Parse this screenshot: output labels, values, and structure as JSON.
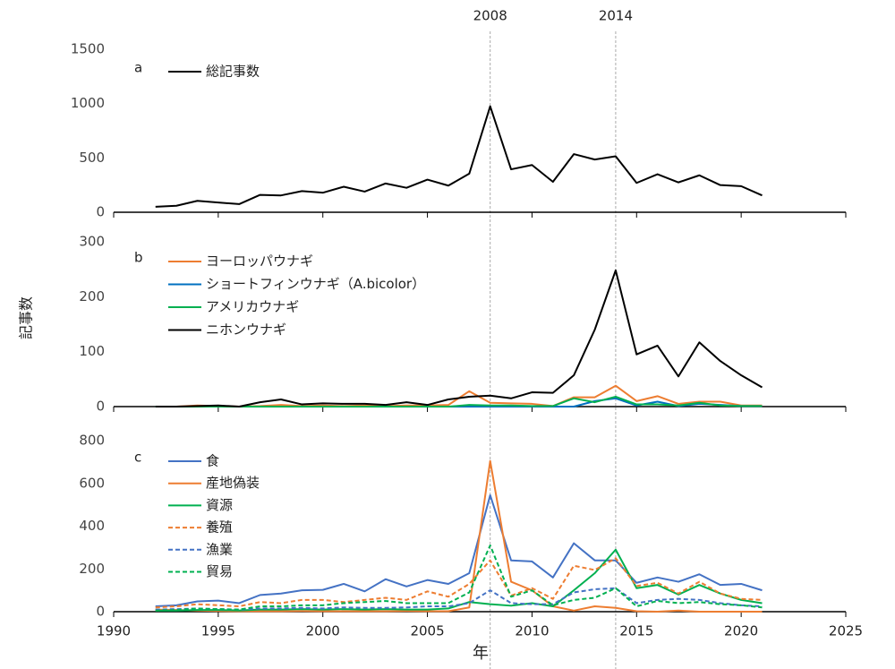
{
  "ylabel": "記事数",
  "xlabel": "年",
  "xlim": [
    1990,
    2025
  ],
  "xticks": [
    1990,
    1995,
    2000,
    2005,
    2010,
    2015,
    2020,
    2025
  ],
  "vlines": [
    2008,
    2014
  ],
  "chart_data": [
    {
      "type": "line",
      "label": "a",
      "ylim": [
        0,
        1500
      ],
      "yticks": [
        0,
        500,
        1000,
        1500
      ],
      "x": [
        1992,
        1993,
        1994,
        1995,
        1996,
        1997,
        1998,
        1999,
        2000,
        2001,
        2002,
        2003,
        2004,
        2005,
        2006,
        2007,
        2008,
        2009,
        2010,
        2011,
        2012,
        2013,
        2014,
        2015,
        2016,
        2017,
        2018,
        2019,
        2020,
        2021
      ],
      "series": [
        {
          "name": "総記事数",
          "color": "#000000",
          "dash": false,
          "values": [
            50,
            60,
            105,
            90,
            75,
            160,
            155,
            195,
            180,
            235,
            190,
            265,
            225,
            300,
            245,
            355,
            975,
            395,
            435,
            280,
            535,
            485,
            515,
            270,
            350,
            275,
            340,
            250,
            240,
            155
          ]
        }
      ]
    },
    {
      "type": "line",
      "label": "b",
      "ylim": [
        0,
        300
      ],
      "yticks": [
        0,
        100,
        200,
        300
      ],
      "x": [
        1992,
        1993,
        1994,
        1995,
        1996,
        1997,
        1998,
        1999,
        2000,
        2001,
        2002,
        2003,
        2004,
        2005,
        2006,
        2007,
        2008,
        2009,
        2010,
        2011,
        2012,
        2013,
        2014,
        2015,
        2016,
        2017,
        2018,
        2019,
        2020,
        2021
      ],
      "series": [
        {
          "name": "ヨーロッパウナギ",
          "color": "#ed7d31",
          "dash": false,
          "values": [
            0,
            0,
            2,
            1,
            0,
            1,
            3,
            1,
            2,
            1,
            2,
            1,
            2,
            2,
            3,
            28,
            7,
            6,
            5,
            1,
            17,
            17,
            38,
            10,
            19,
            5,
            9,
            9,
            2,
            2
          ]
        },
        {
          "name": "ショートフィンウナギ（A.bicolor）",
          "color": "#0070c0",
          "dash": false,
          "values": [
            0,
            0,
            0,
            0,
            0,
            0,
            0,
            0,
            0,
            0,
            0,
            0,
            0,
            0,
            0,
            0,
            0,
            0,
            0,
            0,
            0,
            10,
            15,
            2,
            9,
            1,
            5,
            3,
            1,
            1
          ]
        },
        {
          "name": "アメリカウナギ",
          "color": "#00b050",
          "dash": false,
          "values": [
            0,
            0,
            0,
            0,
            0,
            0,
            0,
            0,
            0,
            0,
            0,
            0,
            0,
            0,
            0,
            3,
            2,
            2,
            1,
            1,
            15,
            8,
            18,
            4,
            4,
            2,
            7,
            2,
            1,
            1
          ]
        },
        {
          "name": "ニホンウナギ",
          "color": "#000000",
          "dash": false,
          "values": [
            0,
            0,
            1,
            2,
            0,
            8,
            13,
            4,
            6,
            5,
            5,
            3,
            8,
            3,
            13,
            18,
            20,
            15,
            26,
            25,
            57,
            140,
            248,
            95,
            111,
            55,
            117,
            83,
            57,
            35
          ]
        }
      ]
    },
    {
      "type": "line",
      "label": "c",
      "ylim": [
        0,
        800
      ],
      "yticks": [
        0,
        200,
        400,
        600,
        800
      ],
      "x": [
        1992,
        1993,
        1994,
        1995,
        1996,
        1997,
        1998,
        1999,
        2000,
        2001,
        2002,
        2003,
        2004,
        2005,
        2006,
        2007,
        2008,
        2009,
        2010,
        2011,
        2012,
        2013,
        2014,
        2015,
        2016,
        2017,
        2018,
        2019,
        2020,
        2021
      ],
      "series": [
        {
          "name": "食",
          "color": "#4472c4",
          "dash": false,
          "values": [
            25,
            30,
            48,
            52,
            40,
            78,
            85,
            100,
            102,
            130,
            95,
            152,
            118,
            148,
            130,
            180,
            545,
            240,
            235,
            160,
            320,
            240,
            240,
            135,
            160,
            140,
            175,
            125,
            130,
            100
          ]
        },
        {
          "name": "産地偽装",
          "color": "#ed7d31",
          "dash": false,
          "values": [
            10,
            8,
            5,
            3,
            2,
            2,
            2,
            3,
            2,
            2,
            2,
            2,
            3,
            2,
            2,
            20,
            705,
            140,
            100,
            25,
            5,
            25,
            18,
            2,
            0,
            5,
            0,
            0,
            0,
            0
          ]
        },
        {
          "name": "資源",
          "color": "#00b050",
          "dash": false,
          "values": [
            5,
            5,
            8,
            8,
            6,
            10,
            10,
            12,
            10,
            12,
            10,
            12,
            10,
            10,
            15,
            45,
            35,
            28,
            40,
            25,
            100,
            180,
            290,
            110,
            125,
            80,
            125,
            85,
            55,
            40
          ]
        },
        {
          "name": "養殖",
          "color": "#ed7d31",
          "dash": true,
          "values": [
            20,
            25,
            35,
            30,
            25,
            45,
            40,
            55,
            55,
            45,
            55,
            65,
            55,
            95,
            70,
            130,
            240,
            75,
            110,
            60,
            215,
            195,
            250,
            120,
            135,
            85,
            140,
            85,
            60,
            55
          ]
        },
        {
          "name": "漁業",
          "color": "#4472c4",
          "dash": true,
          "values": [
            10,
            12,
            15,
            12,
            10,
            15,
            15,
            18,
            15,
            20,
            18,
            18,
            20,
            25,
            25,
            40,
            100,
            40,
            35,
            35,
            90,
            105,
            110,
            40,
            55,
            60,
            55,
            40,
            30,
            25
          ]
        },
        {
          "name": "貿易",
          "color": "#00b050",
          "dash": true,
          "values": [
            5,
            8,
            15,
            12,
            10,
            25,
            25,
            30,
            30,
            40,
            45,
            50,
            40,
            40,
            40,
            90,
            310,
            70,
            100,
            30,
            55,
            65,
            110,
            25,
            50,
            40,
            45,
            35,
            30,
            20
          ]
        }
      ]
    }
  ]
}
